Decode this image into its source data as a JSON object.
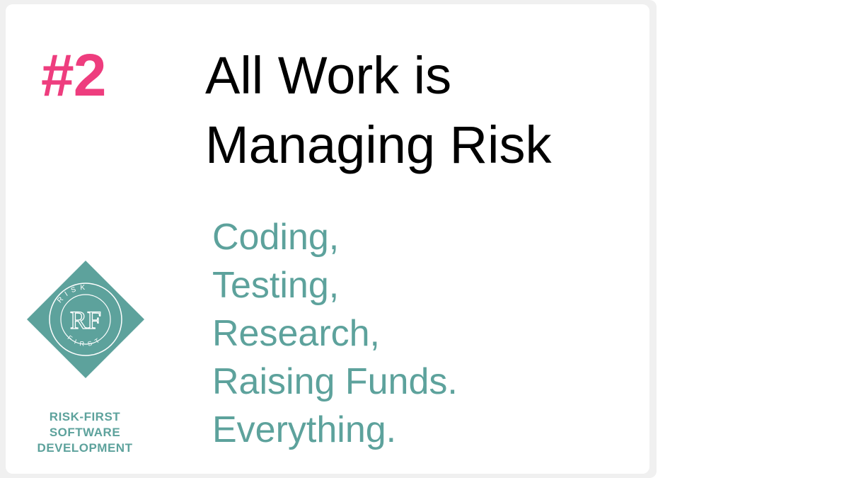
{
  "number": "#2",
  "title": {
    "line1": "All Work is",
    "line2": "Managing Risk"
  },
  "items": [
    "Coding,",
    "Testing,",
    "Research,",
    "Raising Funds.",
    "Everything."
  ],
  "logo": {
    "top_text": "RISK",
    "bottom_text": "FIRST",
    "monogram": "RF"
  },
  "brand": {
    "line1": "RISK-FIRST",
    "line2": "SOFTWARE",
    "line3": "DEVELOPMENT"
  },
  "colors": {
    "accent_pink": "#ee3d7e",
    "accent_teal": "#5da29c",
    "title": "#000000"
  }
}
